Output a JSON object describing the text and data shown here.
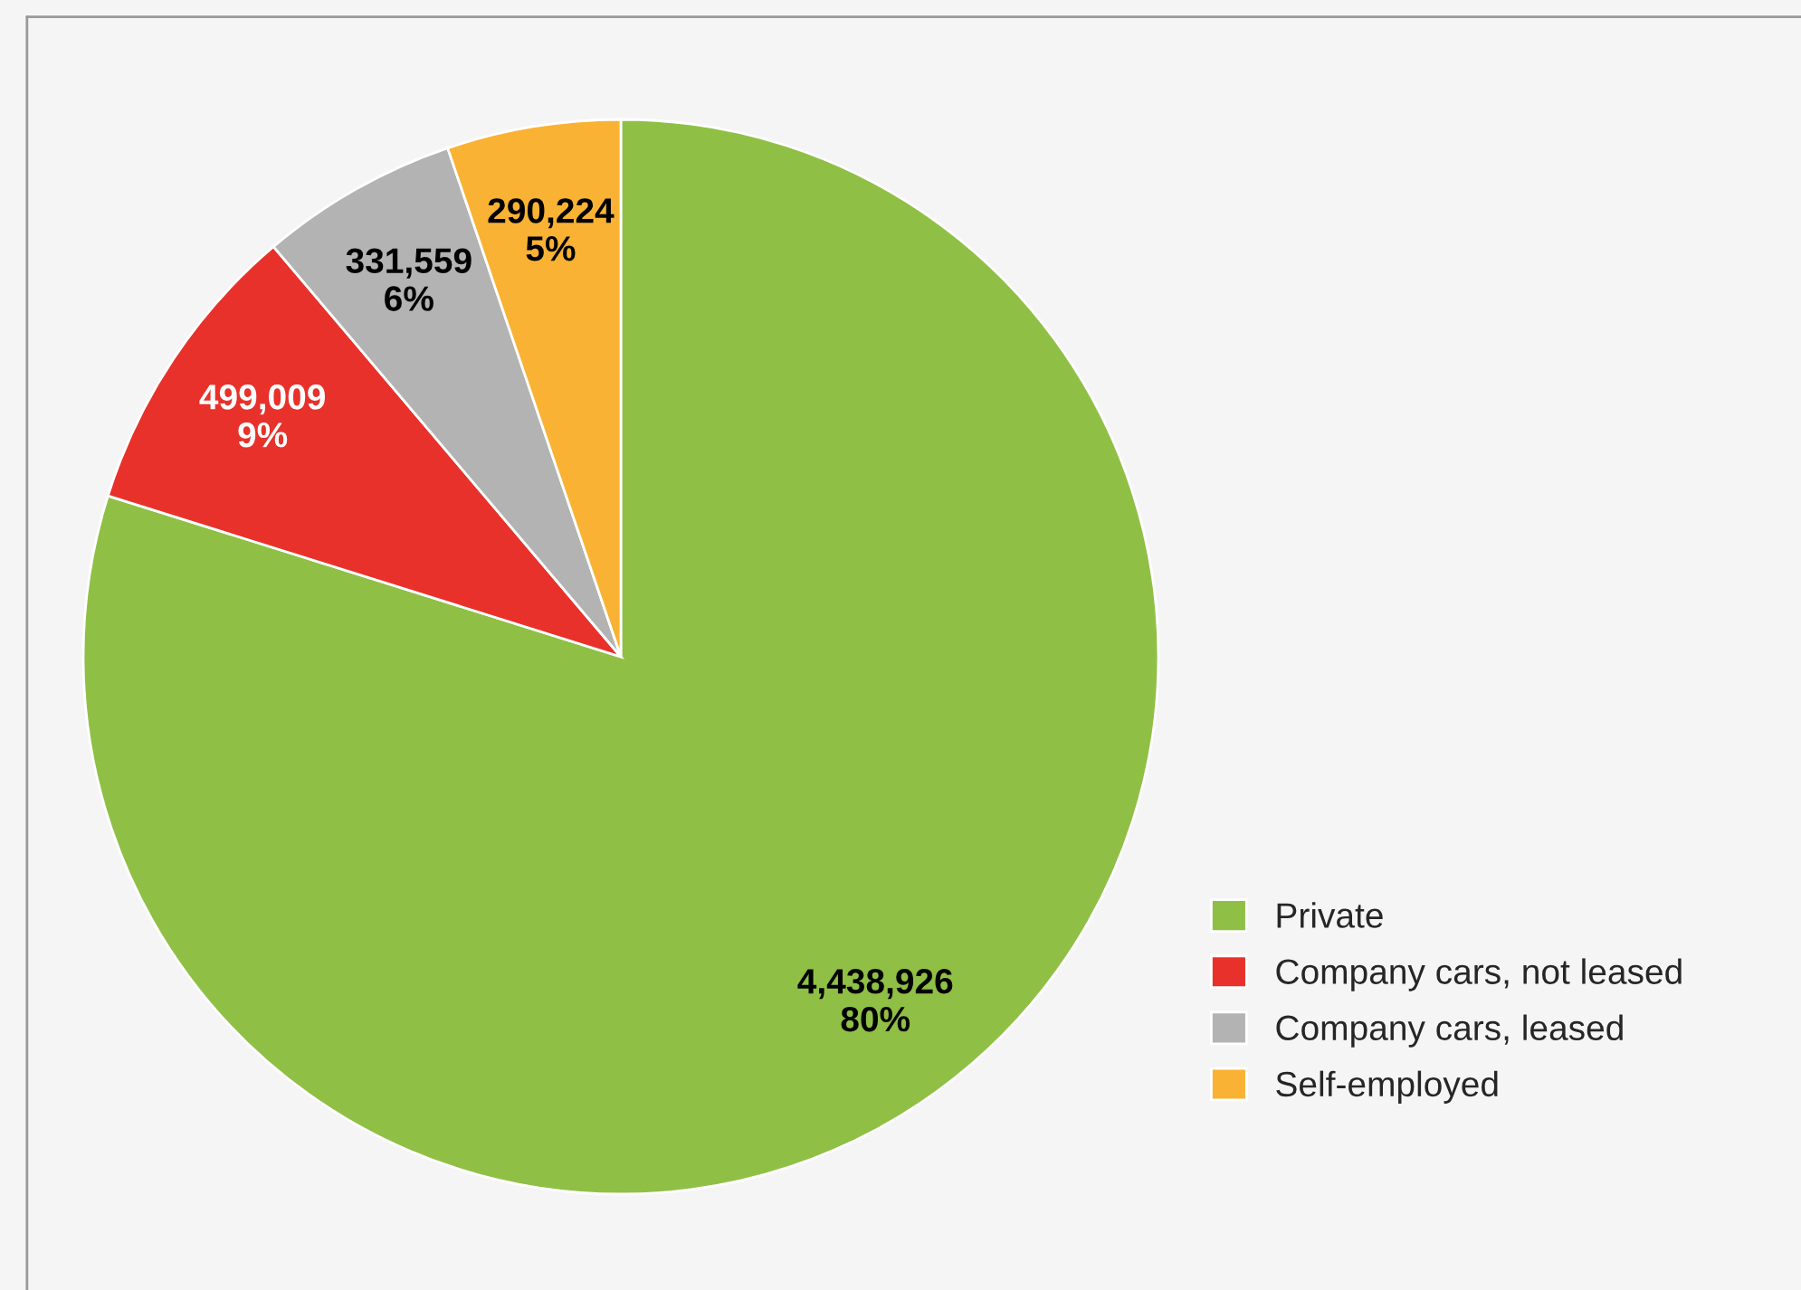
{
  "chart_data": {
    "type": "pie",
    "categories": [
      "Private",
      "Company cars, not leased",
      "Company cars, leased",
      "Self-employed"
    ],
    "values": [
      4438926,
      499009,
      331559,
      290224
    ],
    "value_labels": [
      "4,438,926\n80%",
      "499,009\n9%",
      "331,559\n6%",
      "290,224\n5%"
    ],
    "colors": [
      "#8fc045",
      "#e8312a",
      "#b3b3b3",
      "#f9b233"
    ],
    "legend": "bottom right"
  }
}
